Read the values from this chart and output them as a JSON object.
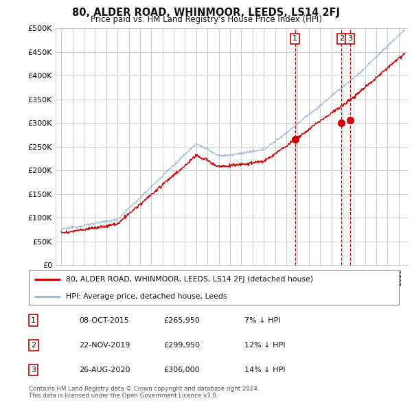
{
  "title": "80, ALDER ROAD, WHINMOOR, LEEDS, LS14 2FJ",
  "subtitle": "Price paid vs. HM Land Registry's House Price Index (HPI)",
  "ylim": [
    0,
    500000
  ],
  "xlim_start": 1994.5,
  "xlim_end": 2025.8,
  "sale_color": "#cc0000",
  "hpi_color": "#99bbdd",
  "transaction_dates": [
    2015.77,
    2019.9,
    2020.65
  ],
  "transaction_prices": [
    265950,
    299950,
    306000
  ],
  "transaction_labels": [
    "1",
    "2",
    "3"
  ],
  "legend_sale_label": "80, ALDER ROAD, WHINMOOR, LEEDS, LS14 2FJ (detached house)",
  "legend_hpi_label": "HPI: Average price, detached house, Leeds",
  "table_rows": [
    [
      "1",
      "08-OCT-2015",
      "£265,950",
      "7% ↓ HPI"
    ],
    [
      "2",
      "22-NOV-2019",
      "£299,950",
      "12% ↓ HPI"
    ],
    [
      "3",
      "26-AUG-2020",
      "£306,000",
      "14% ↓ HPI"
    ]
  ],
  "footnote": "Contains HM Land Registry data © Crown copyright and database right 2024.\nThis data is licensed under the Open Government Licence v3.0.",
  "background_color": "#ffffff",
  "grid_color": "#cccccc"
}
